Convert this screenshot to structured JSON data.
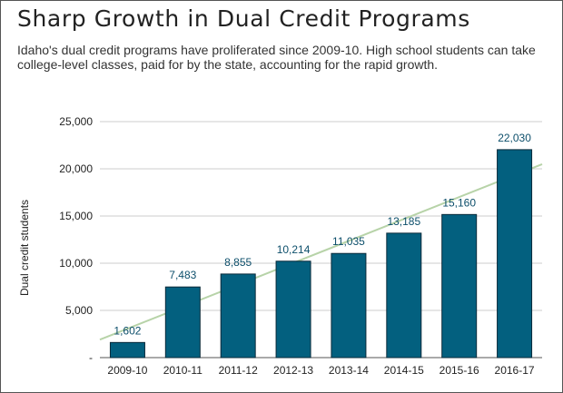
{
  "chart_data": {
    "type": "bar",
    "title": "Sharp Growth in Dual Credit Programs",
    "subtitle": "Idaho's dual credit programs have proliferated since 2009-10. High school students can take college-level classes, paid for by the state, accounting for the rapid growth.",
    "xlabel": "",
    "ylabel": "Dual credit students",
    "categories": [
      "2009-10",
      "2010-11",
      "2011-12",
      "2012-13",
      "2013-14",
      "2014-15",
      "2015-16",
      "2016-17"
    ],
    "values": [
      1602,
      7483,
      8855,
      10214,
      11035,
      13185,
      15160,
      22030
    ],
    "value_labels": [
      "1,602",
      "7,483",
      "8,855",
      "10,214",
      "11,035",
      "13,185",
      "15,160",
      "22,030"
    ],
    "ylim": [
      0,
      25000
    ],
    "yticks": [
      0,
      5000,
      10000,
      15000,
      20000,
      25000
    ],
    "ytick_labels": [
      "-",
      "5,000",
      "10,000",
      "15,000",
      "20,000",
      "25,000"
    ],
    "grid": true,
    "legend": "none",
    "trendline": {
      "type": "linear",
      "color": "#b7d3a8"
    },
    "colors": {
      "bar": "#03607f",
      "bar_edge": "#0a2a3a",
      "label": "#0d4f6b",
      "grid": "#cccccc"
    }
  }
}
